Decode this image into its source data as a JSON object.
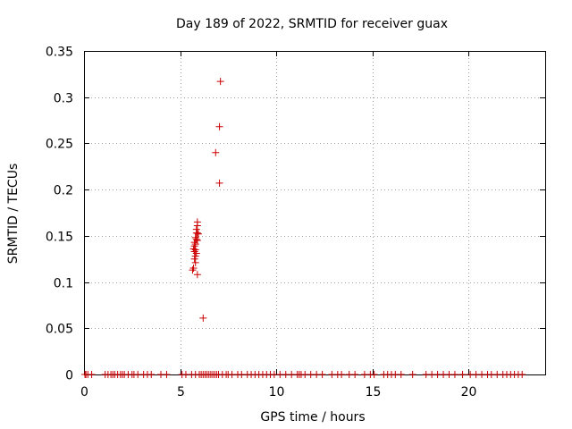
{
  "chart_data": {
    "type": "scatter",
    "title": "Day 189 of 2022, SRMTID for receiver guax",
    "xlabel": "GPS time / hours",
    "ylabel": "SRMTID / TECUs",
    "xlim": [
      0,
      24
    ],
    "ylim": [
      0,
      0.35
    ],
    "x_ticks": [
      0,
      5,
      10,
      15,
      20
    ],
    "y_ticks": [
      0,
      0.05,
      0.1,
      0.15,
      0.2,
      0.25,
      0.3,
      0.35
    ],
    "x_tick_labels": [
      "0",
      "5",
      "10",
      "15",
      "20"
    ],
    "y_tick_labels": [
      "0",
      "0.05",
      "0.1",
      "0.15",
      "0.2",
      "0.25",
      "0.3",
      "0.35"
    ],
    "grid": true,
    "marker": "+",
    "color": "#cc0000",
    "series": [
      {
        "points": [
          [
            7.1,
            0.317
          ],
          [
            7.05,
            0.268
          ],
          [
            6.85,
            0.24
          ],
          [
            7.05,
            0.207
          ],
          [
            5.9,
            0.165
          ],
          [
            5.9,
            0.161
          ],
          [
            5.85,
            0.157
          ],
          [
            5.85,
            0.153
          ],
          [
            5.9,
            0.153
          ],
          [
            5.95,
            0.152
          ],
          [
            5.8,
            0.148
          ],
          [
            5.85,
            0.146
          ],
          [
            5.9,
            0.145
          ],
          [
            5.75,
            0.143
          ],
          [
            5.8,
            0.141
          ],
          [
            5.75,
            0.139
          ],
          [
            5.7,
            0.136
          ],
          [
            5.8,
            0.135
          ],
          [
            5.75,
            0.133
          ],
          [
            5.85,
            0.131
          ],
          [
            5.8,
            0.128
          ],
          [
            5.75,
            0.125
          ],
          [
            5.8,
            0.121
          ],
          [
            5.7,
            0.115
          ],
          [
            5.65,
            0.113
          ],
          [
            5.9,
            0.108
          ],
          [
            6.2,
            0.061
          ],
          [
            0.05,
            0
          ],
          [
            0.1,
            0
          ],
          [
            0.2,
            0
          ],
          [
            0.4,
            0
          ],
          [
            1.1,
            0
          ],
          [
            1.25,
            0
          ],
          [
            1.4,
            0
          ],
          [
            1.5,
            0
          ],
          [
            1.6,
            0
          ],
          [
            1.75,
            0
          ],
          [
            1.9,
            0
          ],
          [
            2.0,
            0
          ],
          [
            2.1,
            0
          ],
          [
            2.3,
            0
          ],
          [
            2.5,
            0
          ],
          [
            2.6,
            0
          ],
          [
            2.8,
            0
          ],
          [
            3.1,
            0
          ],
          [
            3.3,
            0
          ],
          [
            3.5,
            0
          ],
          [
            4.0,
            0
          ],
          [
            4.3,
            0
          ],
          [
            5.1,
            0
          ],
          [
            5.3,
            0
          ],
          [
            5.6,
            0
          ],
          [
            5.8,
            0
          ],
          [
            6.0,
            0
          ],
          [
            6.1,
            0
          ],
          [
            6.2,
            0
          ],
          [
            6.3,
            0
          ],
          [
            6.4,
            0
          ],
          [
            6.5,
            0
          ],
          [
            6.6,
            0
          ],
          [
            6.7,
            0
          ],
          [
            6.8,
            0
          ],
          [
            6.9,
            0
          ],
          [
            7.0,
            0
          ],
          [
            7.2,
            0
          ],
          [
            7.4,
            0
          ],
          [
            7.5,
            0
          ],
          [
            7.7,
            0
          ],
          [
            8.0,
            0
          ],
          [
            8.2,
            0
          ],
          [
            8.5,
            0
          ],
          [
            8.7,
            0
          ],
          [
            8.9,
            0
          ],
          [
            9.1,
            0
          ],
          [
            9.3,
            0
          ],
          [
            9.5,
            0
          ],
          [
            9.7,
            0
          ],
          [
            9.9,
            0
          ],
          [
            10.2,
            0
          ],
          [
            10.5,
            0
          ],
          [
            10.8,
            0
          ],
          [
            11.1,
            0
          ],
          [
            11.2,
            0
          ],
          [
            11.3,
            0
          ],
          [
            11.5,
            0
          ],
          [
            11.8,
            0
          ],
          [
            12.1,
            0
          ],
          [
            12.4,
            0
          ],
          [
            12.9,
            0
          ],
          [
            13.2,
            0
          ],
          [
            13.4,
            0
          ],
          [
            13.8,
            0
          ],
          [
            14.1,
            0
          ],
          [
            14.6,
            0
          ],
          [
            14.9,
            0
          ],
          [
            15.1,
            0
          ],
          [
            15.6,
            0
          ],
          [
            15.8,
            0
          ],
          [
            16.0,
            0
          ],
          [
            16.2,
            0
          ],
          [
            16.5,
            0
          ],
          [
            17.1,
            0
          ],
          [
            17.8,
            0
          ],
          [
            18.1,
            0
          ],
          [
            18.4,
            0
          ],
          [
            18.7,
            0
          ],
          [
            19.0,
            0
          ],
          [
            19.3,
            0
          ],
          [
            19.7,
            0
          ],
          [
            20.1,
            0
          ],
          [
            20.4,
            0
          ],
          [
            20.7,
            0
          ],
          [
            21.0,
            0
          ],
          [
            21.2,
            0
          ],
          [
            21.5,
            0
          ],
          [
            21.8,
            0
          ],
          [
            22.0,
            0
          ],
          [
            22.2,
            0
          ],
          [
            22.4,
            0
          ],
          [
            22.6,
            0
          ],
          [
            22.8,
            0
          ]
        ]
      }
    ]
  }
}
